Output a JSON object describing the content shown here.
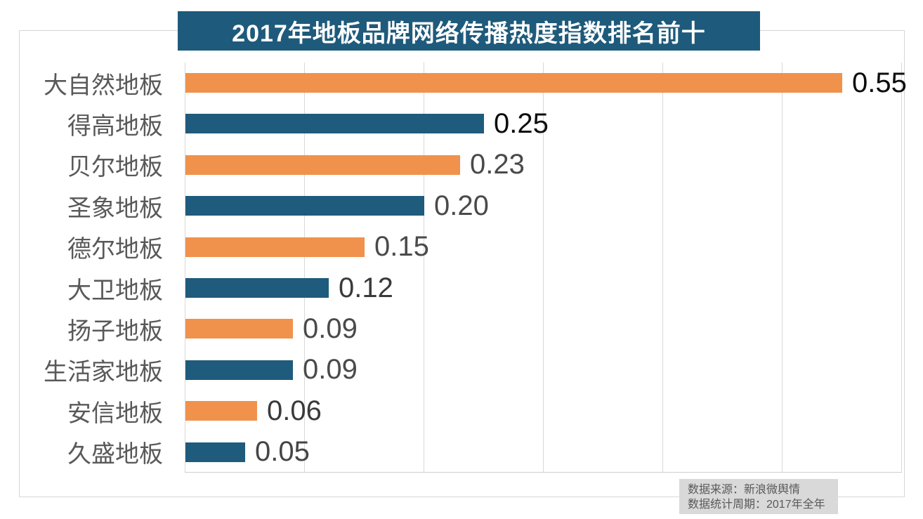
{
  "chart_data": {
    "type": "bar",
    "orientation": "horizontal",
    "title": "2017年地板品牌网络传播热度指数排名前十",
    "categories": [
      "大自然地板",
      "得高地板",
      "贝尔地板",
      "圣象地板",
      "德尔地板",
      "大卫地板",
      "扬子地板",
      "生活家地板",
      "安信地板",
      "久盛地板"
    ],
    "values": [
      0.55,
      0.25,
      0.23,
      0.2,
      0.15,
      0.12,
      0.09,
      0.09,
      0.06,
      0.05
    ],
    "value_labels": [
      "0.55",
      "0.25",
      "0.23",
      "0.20",
      "0.15",
      "0.12",
      "0.09",
      "0.09",
      "0.06",
      "0.05"
    ],
    "xlim": [
      0,
      0.6
    ],
    "grid_interval": 0.1,
    "grid": true,
    "legend": false,
    "bar_color_pattern": [
      "#F0924C",
      "#1F5B7C"
    ],
    "value_label_colors": [
      "#0d0d0d",
      "#0d0d0d",
      "#4a4a4a",
      "#4a4a4a",
      "#4a4a4a",
      "#3a3a3a",
      "#4a4a4a",
      "#4a4a4a",
      "#3a3a3a",
      "#454545"
    ],
    "source": {
      "line1": "数据来源：新浪微舆情",
      "line2": "数据统计周期：2017年全年"
    }
  },
  "colors": {
    "background": "#FFFFFF",
    "title_bg": "#1E5A7B",
    "title_text": "#FFFFFF",
    "category_label": "#595959",
    "grid_line": "#D9D9D9",
    "axis_line": "#CFCFCF",
    "frame_border": "#D6D6D6",
    "source_bg": "#D9D9D9",
    "source_text": "#595959"
  }
}
